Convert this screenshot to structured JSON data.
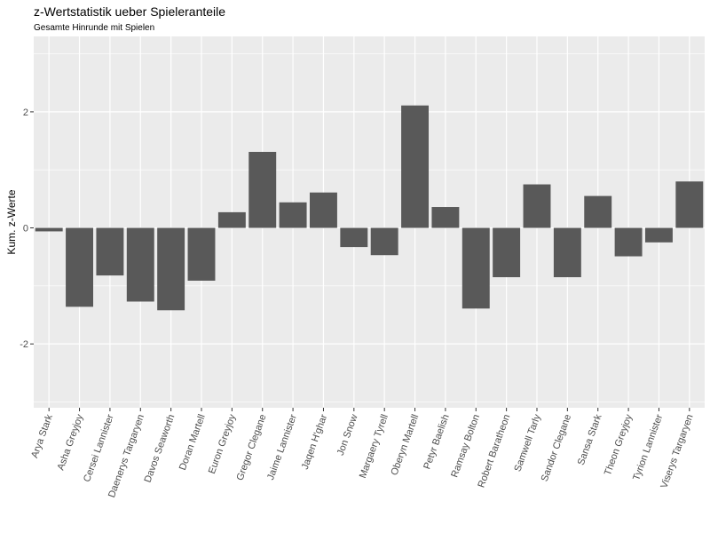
{
  "chart_data": {
    "type": "bar",
    "title": "z-Wertstatistik ueber Spieleranteile",
    "subtitle": "Gesamte Hinrunde mit Spielen",
    "xlabel": "",
    "ylabel": "Kum. z-Werte",
    "ylim": [
      -3.1,
      3.3
    ],
    "yticks": [
      -2,
      0,
      2
    ],
    "ytick_labels": [
      "-2",
      "0",
      "2"
    ],
    "grid": true,
    "background": "#ebebeb",
    "bar_color": "#595959",
    "categories": [
      "Arya Stark",
      "Asha Greyjoy",
      "Cersei Lannister",
      "Daenerys Targaryen",
      "Davos Seaworth",
      "Doran Martell",
      "Euron Greyjoy",
      "Gregor Clegane",
      "Jaime Lannister",
      "Jaqen H'ghar",
      "Jon Snow",
      "Margaery Tyrell",
      "Oberyn Martell",
      "Petyr Baelish",
      "Ramsay Bolton",
      "Robert Baratheon",
      "Samwell Tarly",
      "Sandor Clegane",
      "Sansa Stark",
      "Theon Greyjoy",
      "Tyrion Lannister",
      "Viserys Targaryen"
    ],
    "values": [
      -0.06,
      -1.36,
      -0.82,
      -1.27,
      -1.42,
      -0.91,
      0.27,
      1.31,
      0.44,
      0.61,
      -0.33,
      -0.47,
      2.11,
      0.36,
      -1.39,
      -0.85,
      0.75,
      -0.85,
      0.55,
      -0.49,
      -0.25,
      0.8
    ]
  }
}
